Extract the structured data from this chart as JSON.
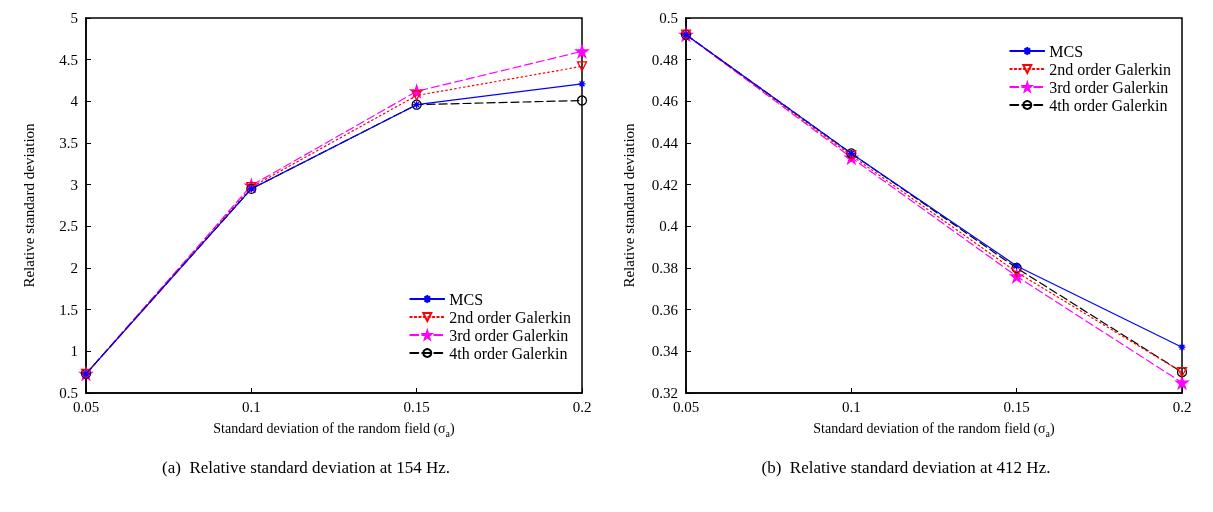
{
  "chart_data": [
    {
      "type": "line",
      "xlabel": "Standard deviation of the random field (σ$_{a}$)",
      "ylabel": "Relative standard deviation",
      "x": [
        0.05,
        0.1,
        0.15,
        0.2
      ],
      "xlim": [
        0.05,
        0.2
      ],
      "xticks": [
        0.05,
        0.1,
        0.15,
        0.2
      ],
      "ylim": [
        0.5,
        5
      ],
      "yticks": [
        0.5,
        1,
        1.5,
        2,
        2.5,
        3,
        3.5,
        4,
        4.5,
        5
      ],
      "grid": false,
      "legend": "bottom right",
      "annotations": [
        "(a)  Relative standard deviation at 154 Hz."
      ],
      "series": [
        {
          "name": "MCS",
          "color": "#0000ff",
          "marker": "cross",
          "line_style": "solid",
          "values": [
            0.73,
            2.95,
            3.96,
            4.21
          ]
        },
        {
          "name": "2nd order Galerkin",
          "color": "#ff0000",
          "marker": "triangle",
          "line_style": "dotted",
          "values": [
            0.73,
            2.97,
            4.07,
            4.42
          ]
        },
        {
          "name": "3rd order Galerkin",
          "color": "#ff00ff",
          "marker": "star",
          "line_style": "dashed",
          "values": [
            0.73,
            2.99,
            4.12,
            4.6
          ]
        },
        {
          "name": "4th order Galerkin",
          "color": "#000000",
          "marker": "circle",
          "line_style": "dashed",
          "values": [
            0.73,
            2.95,
            3.96,
            4.01
          ]
        }
      ]
    },
    {
      "type": "line",
      "xlabel": "Standard deviation of the random field (σ$_{a}$)",
      "ylabel": "Relative standard deviation",
      "x": [
        0.05,
        0.1,
        0.15,
        0.2
      ],
      "xlim": [
        0.05,
        0.2
      ],
      "xticks": [
        0.05,
        0.1,
        0.15,
        0.2
      ],
      "ylim": [
        0.32,
        0.5
      ],
      "yticks": [
        0.32,
        0.34,
        0.36,
        0.38,
        0.4,
        0.42,
        0.44,
        0.46,
        0.48,
        0.5
      ],
      "grid": false,
      "legend": "top right",
      "annotations": [
        "(b)  Relative standard deviation at 412 Hz."
      ],
      "series": [
        {
          "name": "MCS",
          "color": "#0000ff",
          "marker": "cross",
          "line_style": "solid",
          "values": [
            0.492,
            0.435,
            0.381,
            0.342
          ]
        },
        {
          "name": "2nd order Galerkin",
          "color": "#ff0000",
          "marker": "triangle",
          "line_style": "dotted",
          "values": [
            0.492,
            0.434,
            0.378,
            0.33
          ]
        },
        {
          "name": "3rd order Galerkin",
          "color": "#ff00ff",
          "marker": "star",
          "line_style": "dashed",
          "values": [
            0.492,
            0.433,
            0.376,
            0.325
          ]
        },
        {
          "name": "4th order Galerkin",
          "color": "#000000",
          "marker": "circle",
          "line_style": "dashed",
          "values": [
            0.492,
            0.435,
            0.38,
            0.33
          ]
        }
      ]
    }
  ]
}
